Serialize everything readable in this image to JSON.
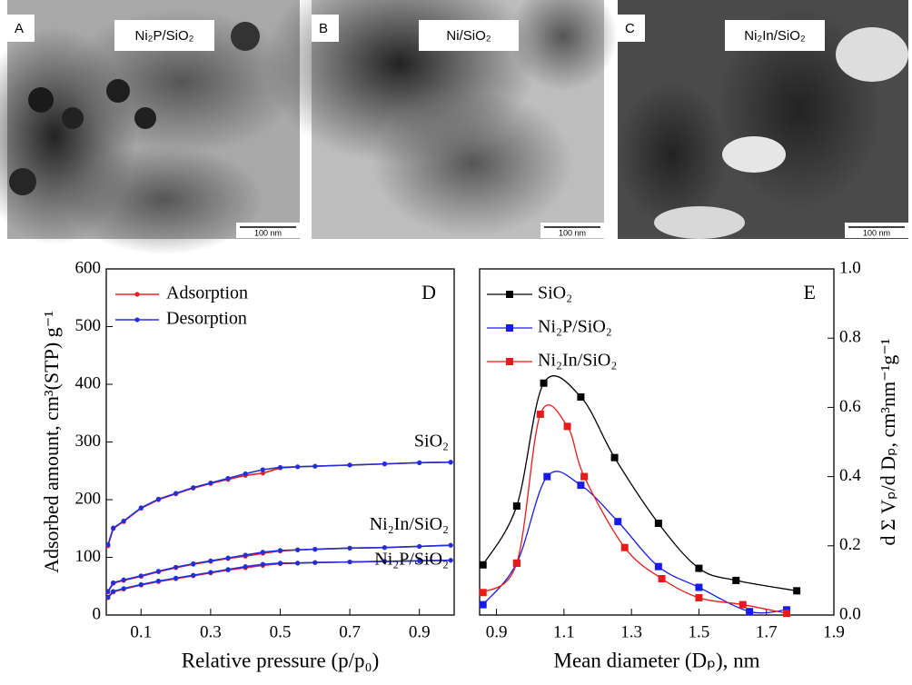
{
  "images": [
    {
      "letter": "A",
      "label": "Ni₂P/SiO₂",
      "scale_bar": "100 nm"
    },
    {
      "letter": "B",
      "label": "Ni/SiO₂",
      "scale_bar": "100 nm"
    },
    {
      "letter": "C",
      "label": "Ni₂In/SiO₂",
      "scale_bar": "100 nm"
    }
  ],
  "chart_data": [
    {
      "type": "line",
      "panel": "D",
      "x_label": "Relative pressure (p/p₀)",
      "y_label": "Adsorbed amount, cm³(STP) g⁻¹",
      "xlim": [
        0,
        1
      ],
      "xticks": [
        0.1,
        0.3,
        0.5,
        0.7,
        0.9
      ],
      "ylim": [
        0,
        600
      ],
      "yticks": [
        0,
        100,
        200,
        300,
        400,
        500,
        600
      ],
      "series": [
        {
          "name": "Adsorption",
          "color": "#e8202a"
        },
        {
          "name": "Desorption",
          "color": "#2030d8"
        }
      ],
      "x": [
        0.005,
        0.02,
        0.05,
        0.1,
        0.15,
        0.2,
        0.25,
        0.3,
        0.35,
        0.4,
        0.45,
        0.5,
        0.55,
        0.6,
        0.7,
        0.8,
        0.9,
        0.99
      ],
      "curves": [
        {
          "label": "SiO₂",
          "values": [
            [
              120,
              150,
              162,
              185,
              200,
              210,
              220,
              228,
              235,
              242,
              246,
              255,
              257,
              258,
              260,
              262,
              264,
              265
            ],
            [
              122,
              151,
              163,
              186,
              201,
              211,
              221,
              229,
              237,
              245,
              252,
              256,
              257,
              258,
              260,
              262,
              264,
              265
            ]
          ]
        },
        {
          "label": "Ni₂In/SiO₂",
          "values": [
            [
              40,
              55,
              60,
              67,
              75,
              82,
              88,
              93,
              98,
              102,
              107,
              111,
              113,
              114,
              116,
              117,
              119,
              121
            ],
            [
              41,
              56,
              61,
              68,
              76,
              83,
              89,
              94,
              99,
              104,
              109,
              112,
              113,
              114,
              116,
              117,
              119,
              121
            ]
          ]
        },
        {
          "label": "Ni₂P/SiO₂",
          "values": [
            [
              30,
              40,
              45,
              52,
              58,
              63,
              68,
              73,
              78,
              82,
              86,
              89,
              90,
              91,
              92,
              93,
              94,
              95
            ],
            [
              31,
              41,
              46,
              53,
              59,
              64,
              69,
              74,
              79,
              84,
              88,
              90,
              90,
              91,
              92,
              93,
              94,
              95
            ]
          ]
        }
      ]
    },
    {
      "type": "line",
      "panel": "E",
      "x_label": "Mean diameter (Dₚ), nm",
      "y_label": "d Σ Vₚ/d Dₚ, cm³nm⁻¹g⁻¹",
      "xlim": [
        0.85,
        1.9
      ],
      "xticks": [
        0.9,
        1.1,
        1.3,
        1.5,
        1.7,
        1.9
      ],
      "y2lim": [
        0,
        1
      ],
      "y2ticks": [
        {
          "value": 0,
          "label": "0.0"
        },
        0.2,
        0.4,
        0.6,
        0.8,
        {
          "value": 1,
          "label": "1.0"
        }
      ],
      "series": [
        {
          "name": "SiO₂",
          "color": "#000000",
          "axis": "y2",
          "x": [
            0.86,
            0.96,
            1.04,
            1.15,
            1.25,
            1.38,
            1.5,
            1.61,
            1.79
          ],
          "values": [
            0.145,
            0.315,
            0.67,
            0.63,
            0.455,
            0.265,
            0.135,
            0.1,
            0.07
          ]
        },
        {
          "name": "Ni₂P/SiO₂",
          "color": "#1a1ae6",
          "axis": "y2",
          "x": [
            0.86,
            0.96,
            1.05,
            1.15,
            1.26,
            1.38,
            1.5,
            1.65,
            1.76
          ],
          "values": [
            0.03,
            0.15,
            0.4,
            0.375,
            0.27,
            0.14,
            0.08,
            0.01,
            0.015
          ]
        },
        {
          "name": "Ni₂In/SiO₂",
          "color": "#e81a1a",
          "axis": "y2",
          "x": [
            0.86,
            0.96,
            1.03,
            1.11,
            1.16,
            1.28,
            1.39,
            1.5,
            1.63,
            1.76
          ],
          "values": [
            0.065,
            0.15,
            0.58,
            0.545,
            0.4,
            0.195,
            0.105,
            0.05,
            0.03,
            0.005
          ]
        }
      ]
    }
  ]
}
